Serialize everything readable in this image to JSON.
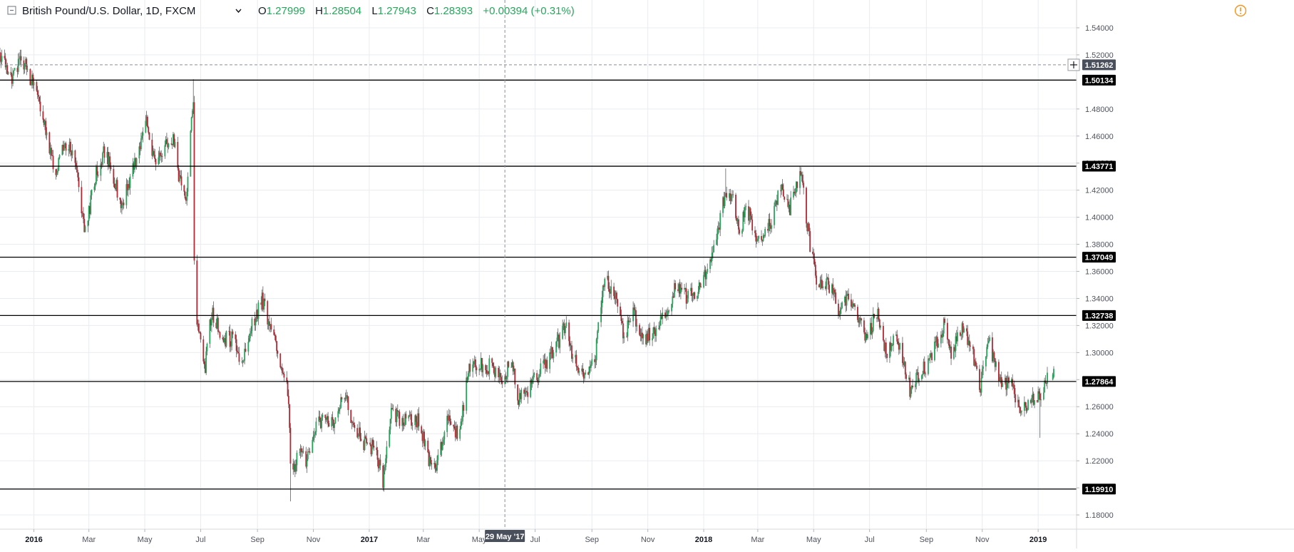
{
  "header": {
    "symbol": "British Pound/U.S. Dollar, 1D, FXCM",
    "ohlc": {
      "open_label": "O",
      "open": "1.27999",
      "high_label": "H",
      "high": "1.28504",
      "low_label": "L",
      "low": "1.27943",
      "close_label": "C",
      "close": "1.28393",
      "change": "+0.00394 (+0.31%)"
    },
    "collapse_icon": "collapse-square-icon",
    "dropdown_icon": "chevron-down-icon",
    "alert_icon": "warning-circle-icon"
  },
  "colors": {
    "up": "#26a65b",
    "down": "#b22833",
    "wick": "#4a4a4a",
    "grid": "#e9ecf0",
    "level_line": "#000000",
    "crosshair": "#8a8e99",
    "tag_bg": "#000000",
    "tag_text": "#ffffff",
    "crosshair_tag_bg": "#4a4f5c",
    "alert": "#f7931a"
  },
  "chart_data": {
    "type": "candlestick",
    "title": "British Pound/U.S. Dollar, 1D, FXCM",
    "y_range": [
      1.17,
      1.55
    ],
    "x_range": [
      "2015-11-25",
      "2019-01-18"
    ],
    "grid": true,
    "y_ticks": [
      {
        "value": 1.18,
        "label": "1.18000"
      },
      {
        "value": 1.2,
        "label": "1.20000"
      },
      {
        "value": 1.22,
        "label": "1.22000"
      },
      {
        "value": 1.24,
        "label": "1.24000"
      },
      {
        "value": 1.26,
        "label": "1.26000"
      },
      {
        "value": 1.28,
        "label": "1.28000"
      },
      {
        "value": 1.3,
        "label": "1.30000"
      },
      {
        "value": 1.32,
        "label": "1.32000"
      },
      {
        "value": 1.34,
        "label": "1.34000"
      },
      {
        "value": 1.36,
        "label": "1.36000"
      },
      {
        "value": 1.38,
        "label": "1.38000"
      },
      {
        "value": 1.4,
        "label": "1.40000"
      },
      {
        "value": 1.42,
        "label": "1.42000"
      },
      {
        "value": 1.44,
        "label": "1.44000"
      },
      {
        "value": 1.46,
        "label": "1.46000"
      },
      {
        "value": 1.48,
        "label": "1.48000"
      },
      {
        "value": 1.52,
        "label": "1.52000"
      },
      {
        "value": 1.54,
        "label": "1.54000"
      }
    ],
    "x_ticks": [
      {
        "date": "2016-01-01",
        "label": "2016",
        "bold": true
      },
      {
        "date": "2016-03-01",
        "label": "Mar"
      },
      {
        "date": "2016-05-01",
        "label": "May"
      },
      {
        "date": "2016-07-01",
        "label": "Jul"
      },
      {
        "date": "2016-09-01",
        "label": "Sep"
      },
      {
        "date": "2016-11-01",
        "label": "Nov"
      },
      {
        "date": "2017-01-01",
        "label": "2017",
        "bold": true
      },
      {
        "date": "2017-03-01",
        "label": "Mar"
      },
      {
        "date": "2017-05-01",
        "label": "May"
      },
      {
        "date": "2017-07-01",
        "label": "Jul"
      },
      {
        "date": "2017-09-01",
        "label": "Sep"
      },
      {
        "date": "2017-11-01",
        "label": "Nov"
      },
      {
        "date": "2018-01-01",
        "label": "2018",
        "bold": true
      },
      {
        "date": "2018-03-01",
        "label": "Mar"
      },
      {
        "date": "2018-05-01",
        "label": "May"
      },
      {
        "date": "2018-07-01",
        "label": "Jul"
      },
      {
        "date": "2018-09-01",
        "label": "Sep"
      },
      {
        "date": "2018-11-01",
        "label": "Nov"
      },
      {
        "date": "2019-01-01",
        "label": "2019",
        "bold": true
      }
    ],
    "levels": [
      {
        "value": 1.50134,
        "label": "1.50134"
      },
      {
        "value": 1.43771,
        "label": "1.43771"
      },
      {
        "value": 1.37049,
        "label": "1.37049"
      },
      {
        "value": 1.32738,
        "label": "1.32738"
      },
      {
        "value": 1.27864,
        "label": "1.27864"
      },
      {
        "value": 1.1991,
        "label": "1.19910"
      }
    ],
    "crosshair": {
      "price": 1.51262,
      "price_label": "1.51262",
      "date": "2017-05-29",
      "date_label": "29 May '17"
    },
    "price_path": [
      [
        "2015-11-25",
        1.522
      ],
      [
        "2015-12-08",
        1.5
      ],
      [
        "2015-12-18",
        1.52
      ],
      [
        "2016-01-05",
        1.49
      ],
      [
        "2016-01-25",
        1.43
      ],
      [
        "2016-02-01",
        1.45
      ],
      [
        "2016-02-12",
        1.45
      ],
      [
        "2016-02-26",
        1.39
      ],
      [
        "2016-03-08",
        1.43
      ],
      [
        "2016-03-18",
        1.45
      ],
      [
        "2016-04-06",
        1.41
      ],
      [
        "2016-04-21",
        1.44
      ],
      [
        "2016-05-03",
        1.47
      ],
      [
        "2016-05-12",
        1.44
      ],
      [
        "2016-05-20",
        1.45
      ],
      [
        "2016-06-01",
        1.46
      ],
      [
        "2016-06-07",
        1.43
      ],
      [
        "2016-06-16",
        1.415
      ],
      [
        "2016-06-20",
        1.46
      ],
      [
        "2016-06-23",
        1.485
      ],
      [
        "2016-06-24",
        1.368
      ],
      [
        "2016-06-27",
        1.325
      ],
      [
        "2016-07-06",
        1.29
      ],
      [
        "2016-07-13",
        1.33
      ],
      [
        "2016-07-25",
        1.31
      ],
      [
        "2016-08-08",
        1.31
      ],
      [
        "2016-08-15",
        1.29
      ],
      [
        "2016-08-26",
        1.32
      ],
      [
        "2016-09-06",
        1.34
      ],
      [
        "2016-09-14",
        1.32
      ],
      [
        "2016-09-23",
        1.3
      ],
      [
        "2016-10-04",
        1.27
      ],
      [
        "2016-10-06",
        1.25
      ],
      [
        "2016-10-07",
        1.22
      ],
      [
        "2016-10-11",
        1.215
      ],
      [
        "2016-10-18",
        1.23
      ],
      [
        "2016-10-25",
        1.218
      ],
      [
        "2016-11-04",
        1.25
      ],
      [
        "2016-11-14",
        1.25
      ],
      [
        "2016-11-24",
        1.245
      ],
      [
        "2016-12-05",
        1.27
      ],
      [
        "2016-12-15",
        1.245
      ],
      [
        "2016-12-30",
        1.23
      ],
      [
        "2017-01-06",
        1.23
      ],
      [
        "2017-01-16",
        1.205
      ],
      [
        "2017-01-25",
        1.26
      ],
      [
        "2017-02-03",
        1.25
      ],
      [
        "2017-02-14",
        1.25
      ],
      [
        "2017-02-24",
        1.25
      ],
      [
        "2017-03-07",
        1.22
      ],
      [
        "2017-03-14",
        1.215
      ],
      [
        "2017-03-28",
        1.25
      ],
      [
        "2017-04-06",
        1.24
      ],
      [
        "2017-04-12",
        1.25
      ],
      [
        "2017-04-18",
        1.285
      ],
      [
        "2017-04-28",
        1.29
      ],
      [
        "2017-05-12",
        1.29
      ],
      [
        "2017-05-26",
        1.28
      ],
      [
        "2017-06-05",
        1.295
      ],
      [
        "2017-06-12",
        1.265
      ],
      [
        "2017-06-26",
        1.275
      ],
      [
        "2017-07-11",
        1.29
      ],
      [
        "2017-07-21",
        1.3
      ],
      [
        "2017-08-03",
        1.32
      ],
      [
        "2017-08-10",
        1.3
      ],
      [
        "2017-08-24",
        1.28
      ],
      [
        "2017-09-05",
        1.3
      ],
      [
        "2017-09-15",
        1.355
      ],
      [
        "2017-09-25",
        1.345
      ],
      [
        "2017-10-06",
        1.31
      ],
      [
        "2017-10-16",
        1.33
      ],
      [
        "2017-10-26",
        1.31
      ],
      [
        "2017-11-09",
        1.315
      ],
      [
        "2017-11-22",
        1.33
      ],
      [
        "2017-12-01",
        1.35
      ],
      [
        "2017-12-14",
        1.34
      ],
      [
        "2017-12-29",
        1.35
      ],
      [
        "2018-01-12",
        1.375
      ],
      [
        "2018-01-25",
        1.42
      ],
      [
        "2018-02-01",
        1.415
      ],
      [
        "2018-02-09",
        1.385
      ],
      [
        "2018-02-16",
        1.41
      ],
      [
        "2018-03-01",
        1.38
      ],
      [
        "2018-03-14",
        1.395
      ],
      [
        "2018-03-26",
        1.42
      ],
      [
        "2018-04-04",
        1.405
      ],
      [
        "2018-04-17",
        1.432
      ],
      [
        "2018-04-27",
        1.38
      ],
      [
        "2018-05-04",
        1.355
      ],
      [
        "2018-05-18",
        1.35
      ],
      [
        "2018-05-29",
        1.33
      ],
      [
        "2018-06-07",
        1.34
      ],
      [
        "2018-06-28",
        1.31
      ],
      [
        "2018-07-09",
        1.33
      ],
      [
        "2018-07-19",
        1.3
      ],
      [
        "2018-07-30",
        1.315
      ],
      [
        "2018-08-15",
        1.27
      ],
      [
        "2018-08-24",
        1.285
      ],
      [
        "2018-09-03",
        1.29
      ],
      [
        "2018-09-20",
        1.32
      ],
      [
        "2018-09-28",
        1.3
      ],
      [
        "2018-10-10",
        1.32
      ],
      [
        "2018-10-19",
        1.305
      ],
      [
        "2018-10-30",
        1.275
      ],
      [
        "2018-11-07",
        1.31
      ],
      [
        "2018-11-20",
        1.28
      ],
      [
        "2018-12-04",
        1.275
      ],
      [
        "2018-12-12",
        1.255
      ],
      [
        "2018-12-27",
        1.265
      ],
      [
        "2019-01-04",
        1.27
      ],
      [
        "2019-01-14",
        1.288
      ]
    ],
    "extremes": [
      {
        "date": "2016-06-23",
        "high": 1.502
      },
      {
        "date": "2016-06-24",
        "low": 1.365
      },
      {
        "date": "2016-10-07",
        "low": 1.19
      },
      {
        "date": "2017-01-16",
        "low": 1.198
      },
      {
        "date": "2018-01-25",
        "high": 1.436
      },
      {
        "date": "2018-04-17",
        "high": 1.437
      },
      {
        "date": "2019-01-03",
        "low": 1.237
      }
    ]
  }
}
